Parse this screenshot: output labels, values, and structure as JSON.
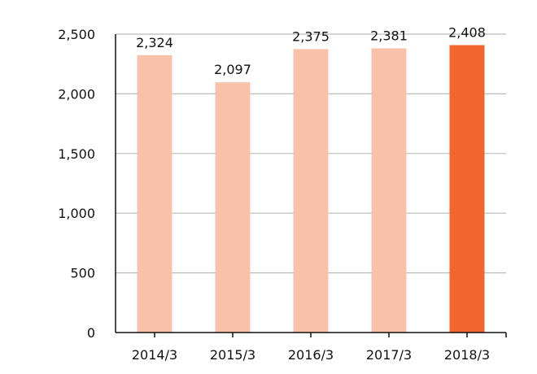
{
  "chart_data": {
    "type": "bar",
    "title": "",
    "xlabel": "",
    "ylabel": "",
    "categories": [
      "2014/3",
      "2015/3",
      "2016/3",
      "2017/3",
      "2018/3"
    ],
    "values": [
      2324,
      2097,
      2375,
      2381,
      2408
    ],
    "value_labels": [
      "2,324",
      "2,097",
      "2,375",
      "2,381",
      "2,408"
    ],
    "ylim": [
      0,
      2500
    ],
    "yticks": [
      0,
      500,
      1000,
      1500,
      2000,
      2500
    ],
    "ytick_labels": [
      "0",
      "500",
      "1,000",
      "1,500",
      "2,000",
      "2,500"
    ],
    "grid": true,
    "bar_colors": [
      "#f9c0aa",
      "#f9c0aa",
      "#f9c0aa",
      "#f9c0aa",
      "#f26430"
    ],
    "gridline_color": "#bbbbbb",
    "axis_color": "#111111"
  }
}
